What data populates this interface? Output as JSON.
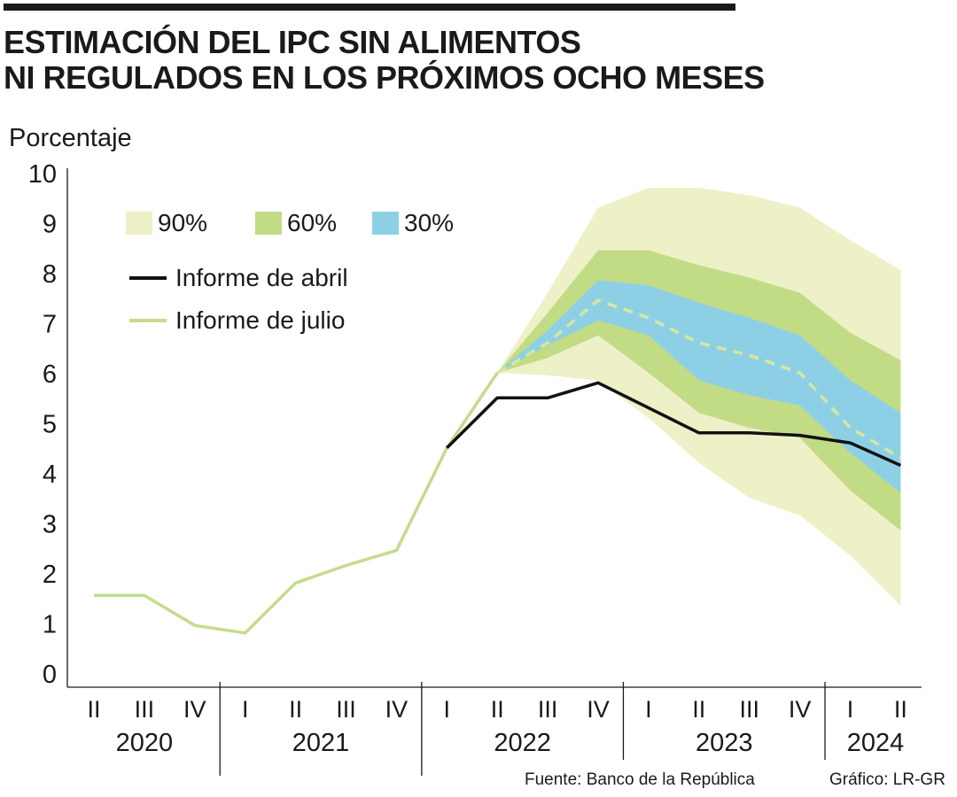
{
  "header": {
    "title_line1": "ESTIMACIÓN DEL IPC SIN ALIMENTOS",
    "title_line2": "NI REGULADOS EN LOS PRÓXIMOS OCHO MESES"
  },
  "footer": {
    "source": "Fuente: Banco de la República",
    "credit": "Gráfico: LR-GR"
  },
  "legend": {
    "band90": "90%",
    "band60": "60%",
    "band30": "30%",
    "abril": "Informe de abril",
    "julio": "Informe de julio"
  },
  "colors": {
    "band90": "#eef0c7",
    "band60": "#c2db85",
    "band30": "#8dd0e6",
    "abril": "#111111",
    "julio": "#c4dc8b",
    "forecast_dash": "#d6e6a2",
    "axis": "#1a1a1a"
  },
  "chart_data": {
    "type": "area",
    "ylabel": "Porcentaje",
    "ylim": [
      0,
      10
    ],
    "yticks": [
      0,
      1,
      2,
      3,
      4,
      5,
      6,
      7,
      8,
      9,
      10
    ],
    "categories": [
      "II",
      "III",
      "IV",
      "I",
      "II",
      "III",
      "IV",
      "I",
      "II",
      "III",
      "IV",
      "I",
      "II",
      "III",
      "IV",
      "I",
      "II"
    ],
    "years": [
      {
        "label": "2020",
        "quarters": 3
      },
      {
        "label": "2021",
        "quarters": 4
      },
      {
        "label": "2022",
        "quarters": 4
      },
      {
        "label": "2023",
        "quarters": 4
      },
      {
        "label": "2024",
        "quarters": 2
      }
    ],
    "series": [
      {
        "name": "Informe de julio",
        "values": [
          1.55,
          1.55,
          0.95,
          0.8,
          1.8,
          2.15,
          2.45,
          4.5,
          6.0,
          6.6,
          7.45,
          7.1,
          6.6,
          6.35,
          6.0,
          4.9,
          4.3
        ]
      },
      {
        "name": "Informe de abril",
        "values": [
          null,
          null,
          null,
          null,
          null,
          null,
          null,
          4.5,
          5.5,
          5.5,
          5.8,
          5.3,
          4.8,
          4.8,
          4.75,
          4.6,
          4.15
        ]
      }
    ],
    "fan": {
      "start_index": 8,
      "band90": {
        "name": "90%",
        "upper": [
          6.0,
          7.6,
          9.3,
          9.7,
          9.7,
          9.55,
          9.3,
          8.65,
          8.05
        ],
        "lower": [
          6.0,
          5.95,
          5.85,
          5.1,
          4.2,
          3.5,
          3.15,
          2.35,
          1.35
        ]
      },
      "band60": {
        "name": "60%",
        "upper": [
          6.0,
          7.2,
          8.45,
          8.45,
          8.15,
          7.9,
          7.6,
          6.8,
          6.25
        ],
        "lower": [
          6.0,
          6.3,
          6.75,
          6.0,
          5.2,
          4.9,
          4.7,
          3.65,
          2.85
        ]
      },
      "band30": {
        "name": "30%",
        "upper": [
          6.0,
          6.85,
          7.85,
          7.75,
          7.4,
          7.1,
          6.75,
          5.85,
          5.2
        ],
        "lower": [
          6.0,
          6.55,
          7.05,
          6.75,
          5.85,
          5.55,
          5.35,
          4.4,
          3.6
        ]
      }
    },
    "legend_position": "top-left",
    "grid": false
  }
}
